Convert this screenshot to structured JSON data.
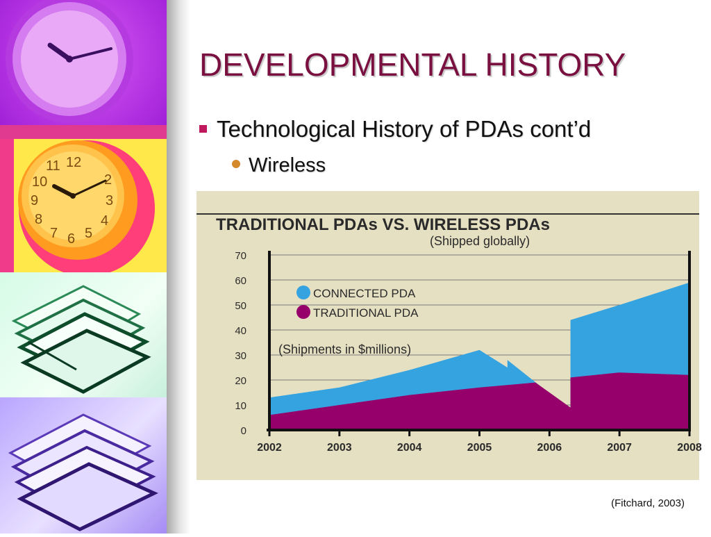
{
  "slide": {
    "title": "DEVELOPMENTAL HISTORY",
    "bullet_level1": "Technological History of PDAs cont’d",
    "bullet_level2": "Wireless",
    "citation": "(Fitchard, 2003)"
  },
  "colors": {
    "title": "#7a1040",
    "bullet_square": "#c0185c",
    "bullet_dot": "#d48a2c",
    "connected": "#35a3e0",
    "traditional": "#95006b",
    "chart_bg": "#e6e0c3"
  },
  "chart_data": {
    "type": "area",
    "title": "TRADITIONAL PDAs VS. WIRELESS PDAs",
    "subtitle": "(Shipped globally)",
    "annotation": "(Shipments in $millions)",
    "xlabel": "",
    "ylabel": "",
    "x_ticks": [
      "2002",
      "2003",
      "2004",
      "2005",
      "2006",
      "2007",
      "2008"
    ],
    "y_ticks": [
      "70",
      "60",
      "50",
      "40",
      "30",
      "20",
      "10",
      "0"
    ],
    "ylim": [
      0,
      70
    ],
    "legend": {
      "position": "left-middle",
      "items": [
        "CONNECTED PDA",
        "TRADITIONAL PDA"
      ]
    },
    "grid": true,
    "series": [
      {
        "name": "CONNECTED PDA",
        "points": [
          [
            2002,
            13
          ],
          [
            2003,
            17
          ],
          [
            2004,
            24
          ],
          [
            2005,
            32
          ],
          [
            2005.4,
            25
          ],
          [
            2005.4,
            28
          ],
          [
            2006.3,
            8
          ],
          [
            2006.3,
            44
          ],
          [
            2007,
            50
          ],
          [
            2008,
            59
          ]
        ]
      },
      {
        "name": "TRADITIONAL PDA",
        "points": [
          [
            2002,
            6
          ],
          [
            2003,
            10
          ],
          [
            2004,
            14
          ],
          [
            2005,
            17
          ],
          [
            2005.8,
            19
          ],
          [
            2006.3,
            9
          ],
          [
            2006.3,
            21
          ],
          [
            2007,
            23
          ],
          [
            2008,
            22
          ]
        ]
      }
    ]
  }
}
